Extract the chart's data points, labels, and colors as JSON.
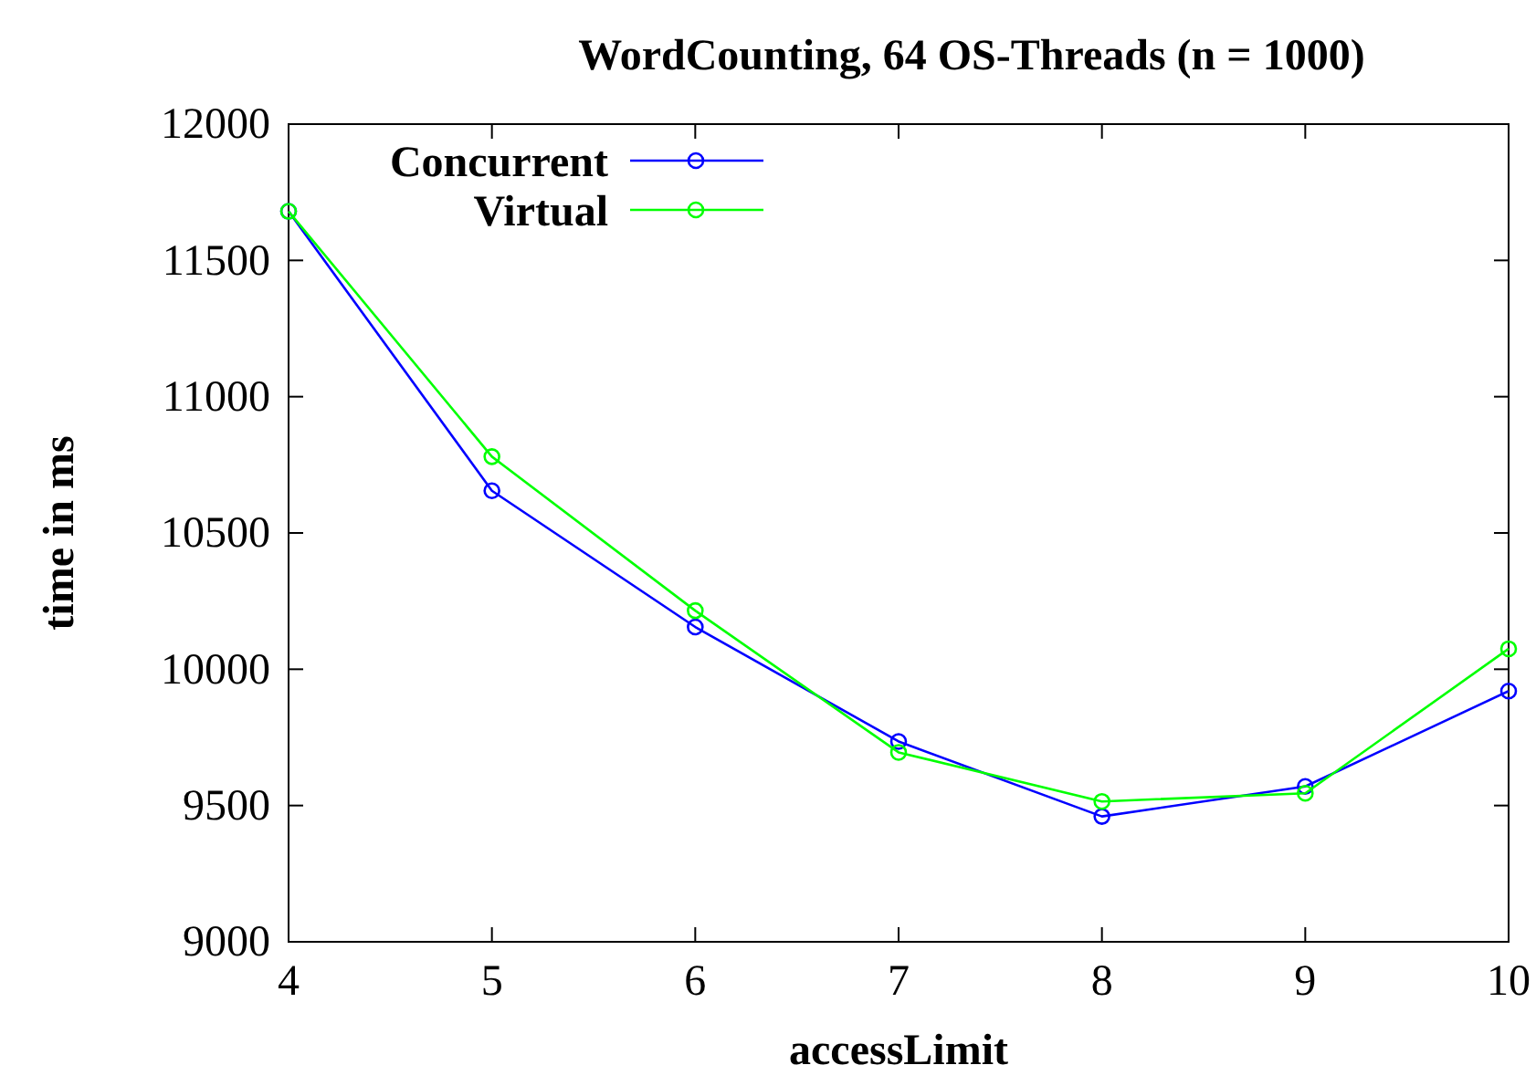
{
  "chart_data": {
    "type": "line",
    "title": "WordCounting, 64 OS-Threads (n = 1000)",
    "xlabel": "accessLimit",
    "ylabel": "time in ms",
    "x": [
      4,
      5,
      6,
      7,
      8,
      9,
      10
    ],
    "series": [
      {
        "name": "Concurrent",
        "color": "#0000ff",
        "values": [
          11680,
          10655,
          10155,
          9735,
          9460,
          9570,
          9920
        ]
      },
      {
        "name": "Virtual",
        "color": "#00ff00",
        "values": [
          11680,
          10780,
          10215,
          9695,
          9515,
          9545,
          10075
        ]
      }
    ],
    "xlim": [
      4,
      10
    ],
    "xticks": [
      4,
      5,
      6,
      7,
      8,
      9,
      10
    ],
    "ylim": [
      9000,
      12000
    ],
    "yticks": [
      9000,
      9500,
      10000,
      10500,
      11000,
      11500,
      12000
    ],
    "grid": false,
    "legend": "top left",
    "marker": "circle",
    "line_style": "solid"
  }
}
